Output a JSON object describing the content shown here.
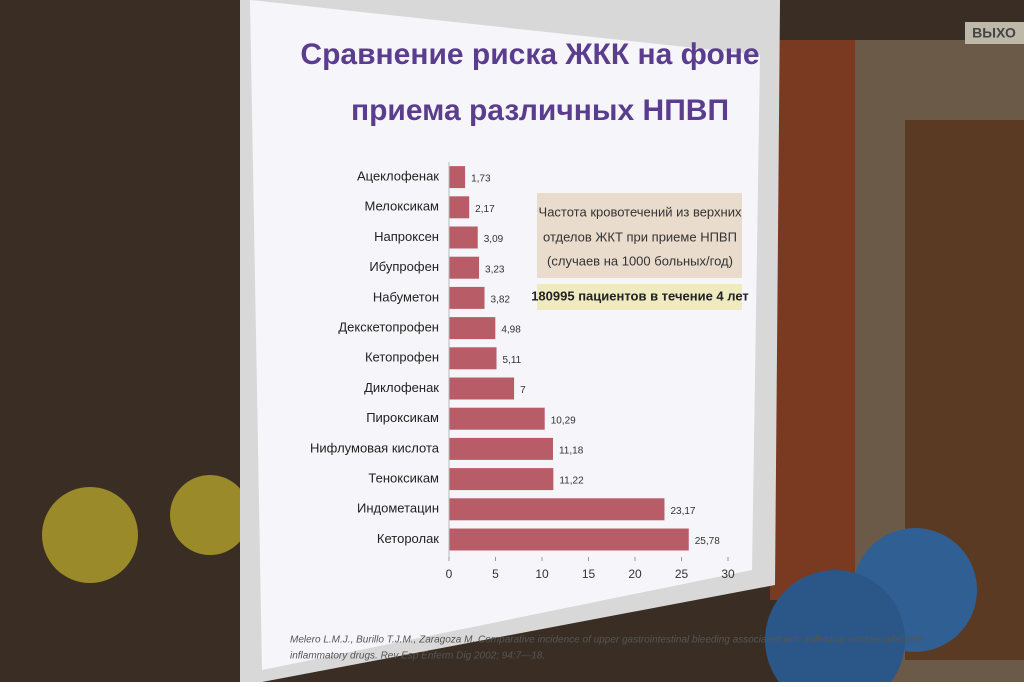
{
  "chart_data": {
    "type": "bar",
    "orientation": "horizontal",
    "title": [
      "Сравнение риска ЖКК на фоне",
      "приема различных НПВП"
    ],
    "categories": [
      "Ацеклофенак",
      "Мелоксикам",
      "Напроксен",
      "Ибупрофен",
      "Набуметон",
      "Декскетопрофен",
      "Кетопрофен",
      "Диклофенак",
      "Пироксикам",
      "Нифлумовая кислота",
      "Теноксикам",
      "Индометацин",
      "Кеторолак"
    ],
    "values": [
      1.73,
      2.17,
      3.09,
      3.23,
      3.82,
      4.98,
      5.11,
      7,
      10.29,
      11.18,
      11.22,
      23.17,
      25.78
    ],
    "value_labels": [
      "1,73",
      "2,17",
      "3,09",
      "3,23",
      "3,82",
      "4,98",
      "5,11",
      "7",
      "10,29",
      "11,18",
      "11,22",
      "23,17",
      "25,78"
    ],
    "color": "#b85d68",
    "xlim": [
      0,
      30
    ],
    "xticks": [
      0,
      5,
      10,
      15,
      20,
      25,
      30
    ],
    "grid": false,
    "annotations": [
      [
        "Частота кровотечений из верхних",
        "отделов ЖКТ при приеме НПВП",
        "(случаев на 1000 больных/год)"
      ],
      "180995 пациентов в течение 4 лет"
    ],
    "citation": [
      "Melero L.M.J., Burillo T.J.M., Zaragoza M. Comparative incidence of upper gastrointestinal bleeding associated with individual nonsteroidal anti-",
      "inflammatory drugs. Rev Esp Enferm Dig 2002; 94:7—18."
    ]
  },
  "exit_sign": "ВЫХО"
}
